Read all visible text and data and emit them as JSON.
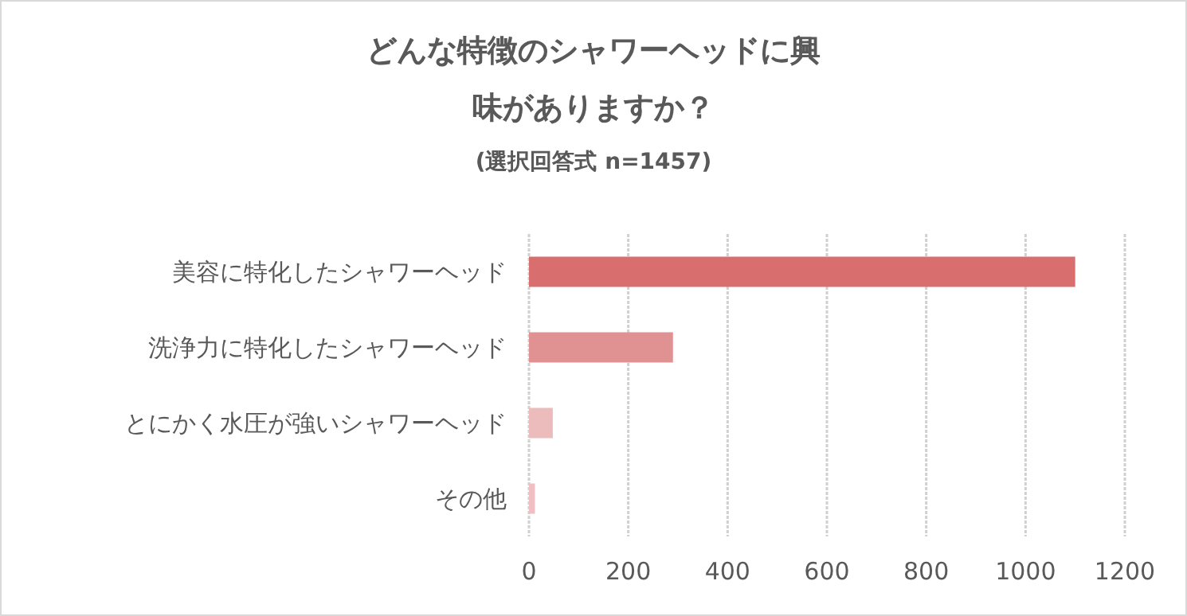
{
  "chart_data": {
    "type": "bar",
    "orientation": "horizontal",
    "title": "どんな特徴のシャワーヘッドに興味がありますか？",
    "subtitle": "(選択回答式 n=1457)",
    "categories": [
      "美容に特化したシャワーヘッド",
      "洗浄力に特化したシャワーヘッド",
      "とにかく水圧が強いシャワーヘッド",
      "その他"
    ],
    "values": [
      1100,
      290,
      48,
      12
    ],
    "colors": [
      "#d86f6e",
      "#e09191",
      "#ecbbbc",
      "#f0bfc3"
    ],
    "xlim": [
      0,
      1200
    ],
    "xticks": [
      0,
      200,
      400,
      600,
      800,
      1000,
      1200
    ],
    "grid": "x"
  }
}
